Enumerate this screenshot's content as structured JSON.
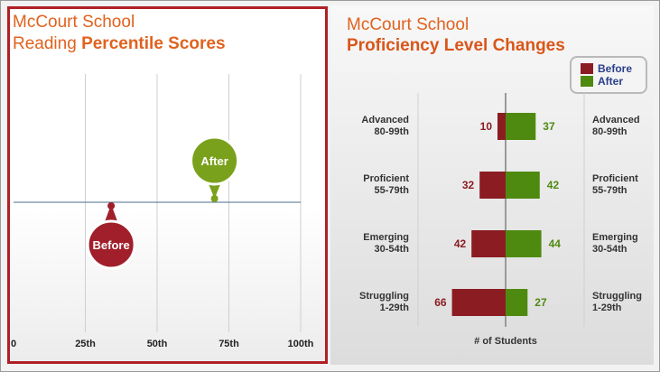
{
  "left_panel": {
    "title_line1": "McCourt School",
    "title_line2_prefix": "Reading ",
    "title_line2_bold": "Percentile Scores"
  },
  "right_panel": {
    "title_line1": "McCourt School",
    "title_line2": "Proficiency Level Changes",
    "legend": [
      {
        "label": "Before",
        "color": "#8b1c22"
      },
      {
        "label": "After",
        "color": "#4f8a10"
      }
    ],
    "x_label": "# of Students"
  },
  "chart_data": [
    {
      "type": "scatter",
      "title": "McCourt School Reading Percentile Scores",
      "x_ticks": [
        "0",
        "25th",
        "50th",
        "75th",
        "100th"
      ],
      "xlim": [
        0,
        100
      ],
      "points": [
        {
          "label": "Before",
          "x": 34,
          "color": "#a01f2b"
        },
        {
          "label": "After",
          "x": 70,
          "color": "#7aa11c"
        }
      ]
    },
    {
      "type": "bar",
      "title": "McCourt School Proficiency Level Changes",
      "xlabel": "# of Students",
      "categories": [
        {
          "name": "Advanced",
          "range": "80-99th"
        },
        {
          "name": "Proficient",
          "range": "55-79th"
        },
        {
          "name": "Emerging",
          "range": "30-54th"
        },
        {
          "name": "Struggling",
          "range": "1-29th"
        }
      ],
      "series": [
        {
          "name": "Before",
          "values": [
            10,
            32,
            42,
            66
          ],
          "color": "#8b1c22"
        },
        {
          "name": "After",
          "values": [
            37,
            42,
            44,
            27
          ],
          "color": "#4f8a10"
        }
      ]
    }
  ]
}
